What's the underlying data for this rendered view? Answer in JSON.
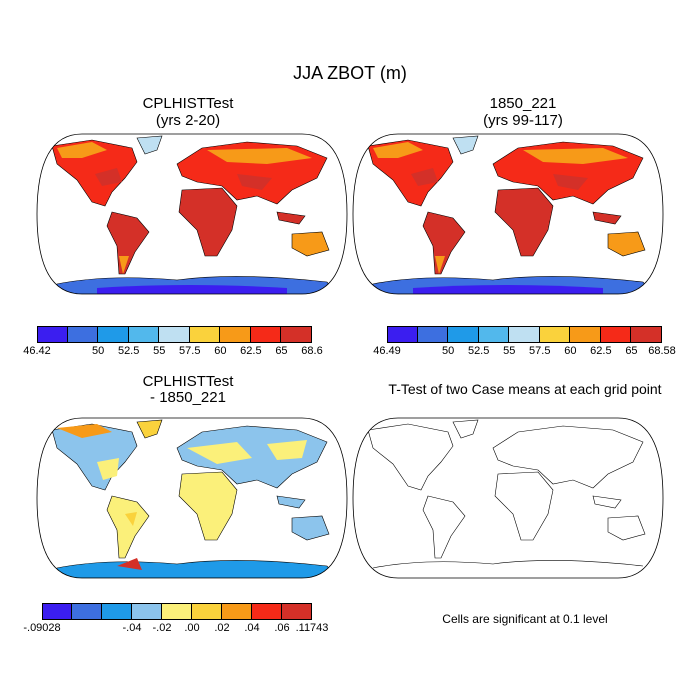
{
  "figure": {
    "title": "JJA ZBOT (m)",
    "panels": [
      {
        "id": "test",
        "title": "CPLHISTTest",
        "subtitle": "(yrs 2-20)",
        "kind": "field"
      },
      {
        "id": "ctrl",
        "title": "1850_221",
        "subtitle": "(yrs 99-117)",
        "kind": "field"
      },
      {
        "id": "diff",
        "title": "CPLHISTTest",
        "subtitle": "- 1850_221",
        "kind": "difference"
      },
      {
        "id": "ttest",
        "title": "T-Test of two Case means at each grid point",
        "subtitle": "",
        "kind": "outline",
        "note": "Cells are significant at 0.1 level"
      }
    ],
    "colorbars": {
      "test": {
        "labels": [
          "46.42",
          "50",
          "52.5",
          "55",
          "57.5",
          "60",
          "62.5",
          "65",
          "68.6"
        ],
        "colors": [
          "#3b1ef0",
          "#3d6fe0",
          "#1f9ae8",
          "#52b8ec",
          "#bfe0f2",
          "#fad23c",
          "#f79a18",
          "#f52a18",
          "#d43028"
        ]
      },
      "ctrl": {
        "labels": [
          "46.49",
          "50",
          "52.5",
          "55",
          "57.5",
          "60",
          "62.5",
          "65",
          "68.58"
        ],
        "colors": [
          "#3b1ef0",
          "#3d6fe0",
          "#1f9ae8",
          "#52b8ec",
          "#bfe0f2",
          "#fad23c",
          "#f79a18",
          "#f52a18",
          "#d43028"
        ]
      },
      "diff": {
        "labels": [
          "-.09028",
          "-.04",
          "-.02",
          ".00",
          ".02",
          ".04",
          ".06",
          ".11743"
        ],
        "colors": [
          "#3b1ef0",
          "#3d6fe0",
          "#1f9ae8",
          "#8cc4ec",
          "#fbf07a",
          "#fad23c",
          "#f79a18",
          "#f52a18",
          "#d43028"
        ]
      }
    }
  }
}
